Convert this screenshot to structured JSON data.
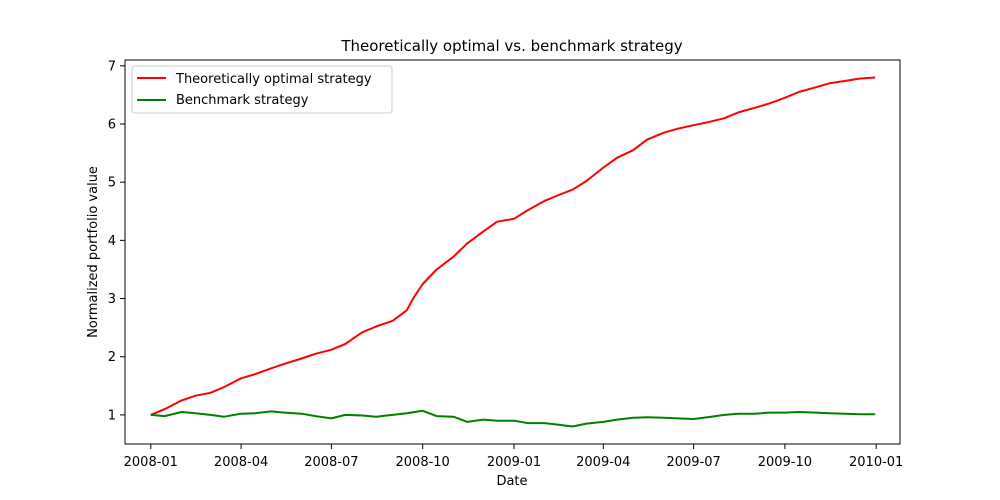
{
  "chart_data": {
    "type": "line",
    "title": "Theoretically optimal vs. benchmark strategy",
    "xlabel": "Date",
    "ylabel": "Normalized portfolio value",
    "xlim": [
      "2007-12-06",
      "2010-01-25"
    ],
    "ylim": [
      0.5,
      7.1
    ],
    "x_ticks": [
      "2008-01",
      "2008-04",
      "2008-07",
      "2008-10",
      "2009-01",
      "2009-04",
      "2009-07",
      "2009-10",
      "2010-01"
    ],
    "y_ticks": [
      1,
      2,
      3,
      4,
      5,
      6,
      7
    ],
    "legend_position": "top-left",
    "grid": false,
    "series": [
      {
        "name": "Theoretically optimal strategy",
        "color": "#ff0000",
        "points": [
          [
            "2008-01-01",
            1.0
          ],
          [
            "2008-01-15",
            1.1
          ],
          [
            "2008-02-01",
            1.25
          ],
          [
            "2008-02-15",
            1.33
          ],
          [
            "2008-03-01",
            1.38
          ],
          [
            "2008-03-15",
            1.48
          ],
          [
            "2008-04-01",
            1.63
          ],
          [
            "2008-04-15",
            1.7
          ],
          [
            "2008-05-01",
            1.8
          ],
          [
            "2008-05-15",
            1.88
          ],
          [
            "2008-06-01",
            1.97
          ],
          [
            "2008-06-15",
            2.05
          ],
          [
            "2008-07-01",
            2.12
          ],
          [
            "2008-07-15",
            2.22
          ],
          [
            "2008-08-01",
            2.42
          ],
          [
            "2008-08-15",
            2.52
          ],
          [
            "2008-09-01",
            2.62
          ],
          [
            "2008-09-15",
            2.8
          ],
          [
            "2008-09-22",
            3.02
          ],
          [
            "2008-10-01",
            3.25
          ],
          [
            "2008-10-15",
            3.5
          ],
          [
            "2008-11-01",
            3.72
          ],
          [
            "2008-11-15",
            3.95
          ],
          [
            "2008-12-01",
            4.15
          ],
          [
            "2008-12-15",
            4.32
          ],
          [
            "2009-01-01",
            4.37
          ],
          [
            "2009-01-15",
            4.52
          ],
          [
            "2009-02-01",
            4.68
          ],
          [
            "2009-02-15",
            4.78
          ],
          [
            "2009-03-01",
            4.87
          ],
          [
            "2009-03-15",
            5.02
          ],
          [
            "2009-04-01",
            5.25
          ],
          [
            "2009-04-15",
            5.42
          ],
          [
            "2009-05-01",
            5.55
          ],
          [
            "2009-05-15",
            5.73
          ],
          [
            "2009-06-01",
            5.85
          ],
          [
            "2009-06-15",
            5.92
          ],
          [
            "2009-07-01",
            5.98
          ],
          [
            "2009-07-15",
            6.03
          ],
          [
            "2009-08-01",
            6.1
          ],
          [
            "2009-08-15",
            6.2
          ],
          [
            "2009-09-01",
            6.28
          ],
          [
            "2009-09-15",
            6.35
          ],
          [
            "2009-10-01",
            6.45
          ],
          [
            "2009-10-15",
            6.55
          ],
          [
            "2009-11-01",
            6.63
          ],
          [
            "2009-11-15",
            6.7
          ],
          [
            "2009-12-01",
            6.74
          ],
          [
            "2009-12-15",
            6.78
          ],
          [
            "2009-12-31",
            6.8
          ]
        ]
      },
      {
        "name": "Benchmark strategy",
        "color": "#008000",
        "points": [
          [
            "2008-01-01",
            1.0
          ],
          [
            "2008-01-15",
            0.98
          ],
          [
            "2008-02-01",
            1.05
          ],
          [
            "2008-02-15",
            1.03
          ],
          [
            "2008-03-01",
            1.0
          ],
          [
            "2008-03-15",
            0.97
          ],
          [
            "2008-04-01",
            1.02
          ],
          [
            "2008-04-15",
            1.03
          ],
          [
            "2008-05-01",
            1.06
          ],
          [
            "2008-05-15",
            1.04
          ],
          [
            "2008-06-01",
            1.02
          ],
          [
            "2008-06-15",
            0.98
          ],
          [
            "2008-07-01",
            0.94
          ],
          [
            "2008-07-15",
            1.0
          ],
          [
            "2008-08-01",
            0.99
          ],
          [
            "2008-08-15",
            0.97
          ],
          [
            "2008-09-01",
            1.0
          ],
          [
            "2008-09-15",
            1.03
          ],
          [
            "2008-10-01",
            1.07
          ],
          [
            "2008-10-15",
            0.98
          ],
          [
            "2008-11-01",
            0.97
          ],
          [
            "2008-11-15",
            0.88
          ],
          [
            "2008-12-01",
            0.92
          ],
          [
            "2008-12-15",
            0.9
          ],
          [
            "2009-01-01",
            0.9
          ],
          [
            "2009-01-15",
            0.86
          ],
          [
            "2009-02-01",
            0.86
          ],
          [
            "2009-02-15",
            0.83
          ],
          [
            "2009-03-01",
            0.8
          ],
          [
            "2009-03-15",
            0.85
          ],
          [
            "2009-04-01",
            0.88
          ],
          [
            "2009-04-15",
            0.92
          ],
          [
            "2009-05-01",
            0.95
          ],
          [
            "2009-05-15",
            0.96
          ],
          [
            "2009-06-01",
            0.95
          ],
          [
            "2009-06-15",
            0.94
          ],
          [
            "2009-07-01",
            0.93
          ],
          [
            "2009-07-15",
            0.96
          ],
          [
            "2009-08-01",
            1.0
          ],
          [
            "2009-08-15",
            1.02
          ],
          [
            "2009-09-01",
            1.02
          ],
          [
            "2009-09-15",
            1.04
          ],
          [
            "2009-10-01",
            1.04
          ],
          [
            "2009-10-15",
            1.05
          ],
          [
            "2009-11-01",
            1.04
          ],
          [
            "2009-11-15",
            1.03
          ],
          [
            "2009-12-01",
            1.02
          ],
          [
            "2009-12-15",
            1.01
          ],
          [
            "2009-12-31",
            1.01
          ]
        ]
      }
    ]
  }
}
